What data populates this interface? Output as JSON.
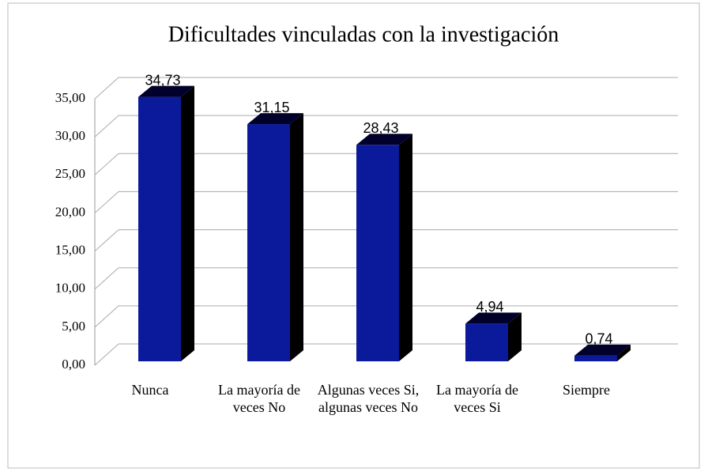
{
  "chart_data": {
    "type": "bar3d",
    "title": "Dificultades vinculadas con la investigación",
    "categories": [
      "Nunca",
      "La mayoría de veces No",
      "Algunas veces Si, algunas veces No",
      "La mayoría de veces Si",
      "Siempre"
    ],
    "values": [
      34.73,
      31.15,
      28.43,
      4.94,
      0.74
    ],
    "value_labels": [
      "34,73",
      "31,15",
      "28,43",
      "4,94",
      "0,74"
    ],
    "color": "#0a1a9a",
    "ylim": [
      0,
      35
    ],
    "yticks": [
      {
        "value": 0,
        "label": "0,00"
      },
      {
        "value": 5,
        "label": "5,00"
      },
      {
        "value": 10,
        "label": "10,00"
      },
      {
        "value": 15,
        "label": "15,00"
      },
      {
        "value": 20,
        "label": "20,00"
      },
      {
        "value": 25,
        "label": "25,00"
      },
      {
        "value": 30,
        "label": "30,00"
      },
      {
        "value": 35,
        "label": "35,00"
      }
    ],
    "grid": true
  }
}
